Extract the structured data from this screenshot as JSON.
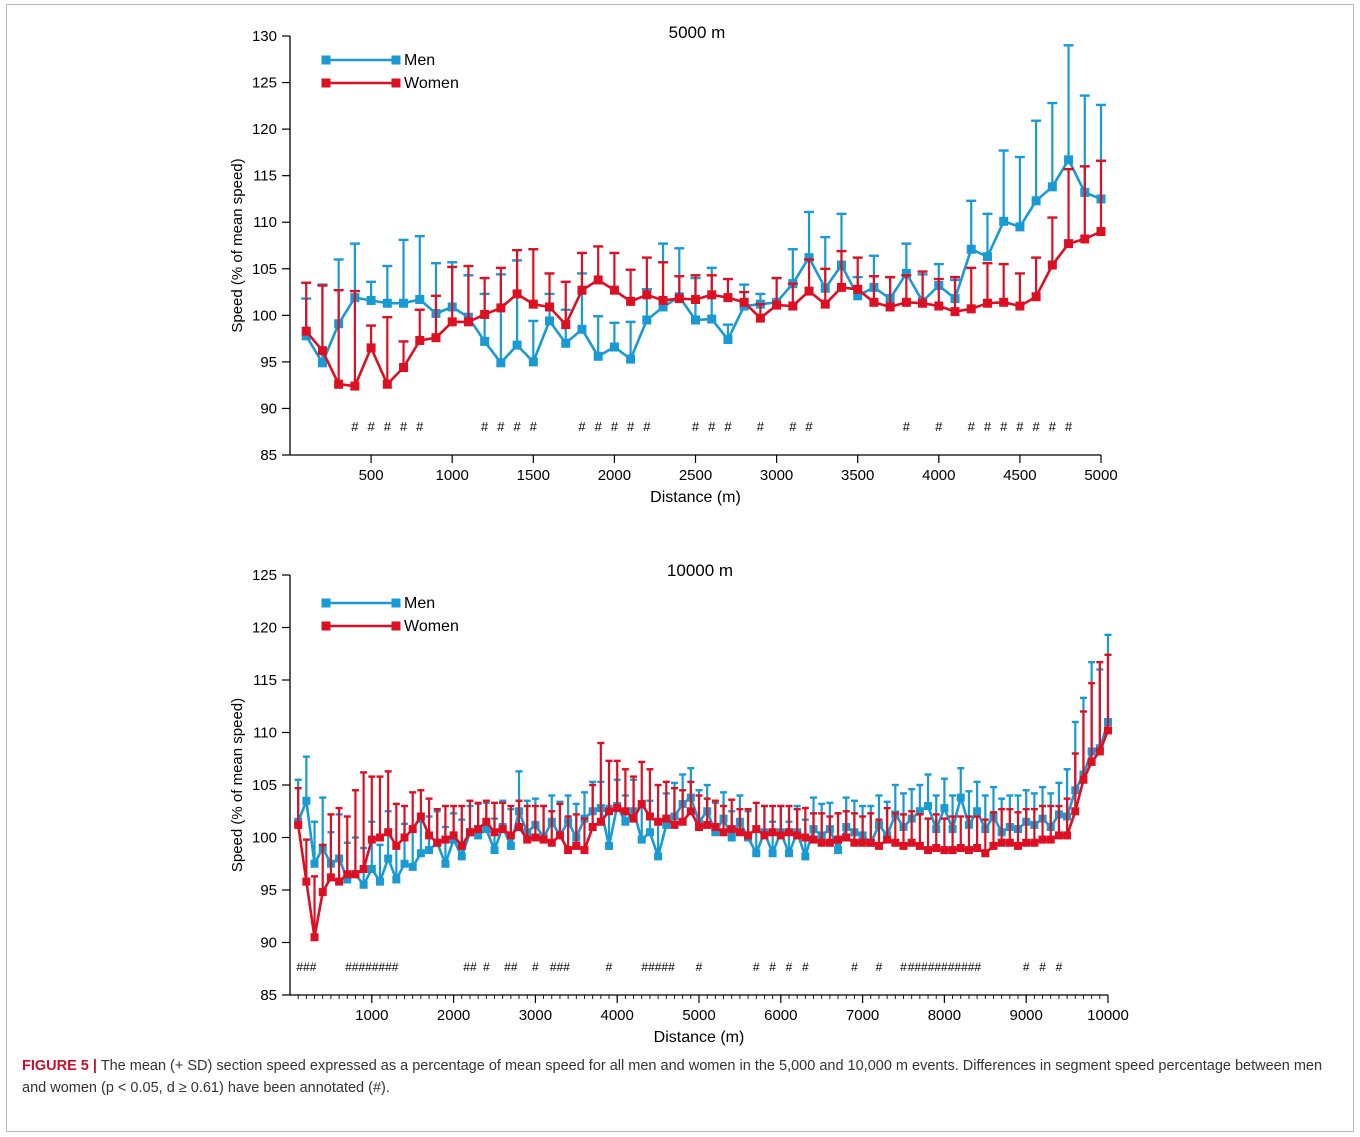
{
  "colors": {
    "men": "#199ad3",
    "women": "#dc0f23",
    "axis": "#000000"
  },
  "chart_data": [
    {
      "type": "line",
      "title": "5000 m",
      "xlabel": "Distance (m)",
      "ylabel": "Speed (% of mean speed)",
      "xlim": [
        0,
        5000
      ],
      "ylim": [
        85,
        130
      ],
      "xticks": [
        500,
        1000,
        1500,
        2000,
        2500,
        3000,
        3500,
        4000,
        4500,
        5000
      ],
      "yticks": [
        85,
        90,
        95,
        100,
        105,
        110,
        115,
        120,
        125,
        130
      ],
      "x": [
        100,
        200,
        300,
        400,
        500,
        600,
        700,
        800,
        900,
        1000,
        1100,
        1200,
        1300,
        1400,
        1500,
        1600,
        1700,
        1800,
        1900,
        2000,
        2100,
        2200,
        2300,
        2400,
        2500,
        2600,
        2700,
        2800,
        2900,
        3000,
        3100,
        3200,
        3300,
        3400,
        3500,
        3600,
        3700,
        3800,
        3900,
        4000,
        4100,
        4200,
        4300,
        4400,
        4500,
        4600,
        4700,
        4800,
        4900,
        5000
      ],
      "series": [
        {
          "name": "Men",
          "color": "#199ad3",
          "values": [
            97.8,
            94.9,
            99.1,
            101.9,
            101.6,
            101.3,
            101.3,
            101.7,
            100.2,
            100.9,
            99.8,
            97.2,
            94.9,
            96.8,
            95.0,
            99.4,
            97.0,
            98.5,
            95.6,
            96.6,
            95.3,
            99.5,
            100.9,
            102.0,
            99.5,
            99.6,
            97.4,
            101.0,
            101.2,
            101.4,
            103.4,
            106.2,
            102.9,
            105.4,
            102.1,
            103.0,
            101.8,
            104.5,
            101.5,
            103.2,
            101.8,
            107.1,
            106.3,
            110.1,
            109.5,
            112.3,
            113.8,
            116.7,
            113.2,
            112.5
          ],
          "sd": [
            4.0,
            8.4,
            6.9,
            5.8,
            2.0,
            4.0,
            6.8,
            6.8,
            5.4,
            4.8,
            4.5,
            5.1,
            9.5,
            9.1,
            4.4,
            2.9,
            3.6,
            6.0,
            4.3,
            2.6,
            4.0,
            3.3,
            6.8,
            5.2,
            4.5,
            5.5,
            1.6,
            2.3,
            1.1,
            2.6,
            3.7,
            4.9,
            5.5,
            5.5,
            2.0,
            3.4,
            2.3,
            3.2,
            2.9,
            2.3,
            2.0,
            5.2,
            4.6,
            7.6,
            7.5,
            8.6,
            9.0,
            12.3,
            10.4,
            10.1
          ]
        },
        {
          "name": "Women",
          "color": "#dc0f23",
          "values": [
            98.3,
            96.2,
            92.6,
            92.4,
            96.5,
            92.6,
            94.4,
            97.3,
            97.6,
            99.3,
            99.3,
            100.1,
            100.8,
            102.3,
            101.2,
            100.9,
            99.0,
            102.7,
            103.8,
            102.7,
            101.5,
            102.2,
            101.6,
            101.8,
            101.7,
            102.2,
            101.9,
            101.4,
            99.7,
            101.1,
            101.0,
            102.6,
            101.2,
            103.0,
            102.8,
            101.4,
            100.9,
            101.4,
            101.3,
            101.0,
            100.4,
            100.7,
            101.3,
            101.4,
            101.0,
            102.0,
            105.4,
            107.7,
            108.2,
            109.0
          ],
          "sd": [
            5.2,
            7.0,
            10.1,
            10.2,
            2.4,
            7.2,
            2.8,
            3.3,
            4.5,
            5.9,
            6.0,
            3.9,
            4.3,
            4.7,
            5.9,
            3.6,
            4.6,
            4.0,
            3.6,
            4.0,
            3.4,
            4.0,
            4.1,
            2.4,
            2.6,
            2.1,
            2.0,
            1.1,
            1.5,
            2.9,
            2.4,
            3.4,
            3.8,
            3.9,
            3.4,
            2.8,
            3.2,
            2.9,
            3.4,
            2.9,
            3.7,
            4.4,
            4.3,
            4.1,
            3.5,
            4.2,
            5.1,
            8.0,
            7.8,
            7.6
          ]
        }
      ],
      "sig_marks": [
        400,
        500,
        600,
        700,
        800,
        1200,
        1300,
        1400,
        1500,
        1800,
        1900,
        2000,
        2100,
        2200,
        2500,
        2600,
        2700,
        2900,
        3100,
        3200,
        3800,
        4000,
        4200,
        4300,
        4400,
        4500,
        4600,
        4700,
        4800
      ],
      "legend": {
        "placement": "top-left",
        "entries": [
          "Men",
          "Women"
        ]
      },
      "annotation_symbol": "#"
    },
    {
      "type": "line",
      "title": "10000 m",
      "xlabel": "Distance (m)",
      "ylabel": "Speed (% of mean speed)",
      "xlim": [
        0,
        10000
      ],
      "ylim": [
        85,
        125
      ],
      "xticks": [
        1000,
        2000,
        3000,
        4000,
        5000,
        6000,
        7000,
        8000,
        9000,
        10000
      ],
      "yticks": [
        85,
        90,
        95,
        100,
        105,
        110,
        115,
        120,
        125
      ],
      "x": [
        100,
        200,
        300,
        400,
        500,
        600,
        700,
        800,
        900,
        1000,
        1100,
        1200,
        1300,
        1400,
        1500,
        1600,
        1700,
        1800,
        1900,
        2000,
        2100,
        2200,
        2300,
        2400,
        2500,
        2600,
        2700,
        2800,
        2900,
        3000,
        3100,
        3200,
        3300,
        3400,
        3500,
        3600,
        3700,
        3800,
        3900,
        4000,
        4100,
        4200,
        4300,
        4400,
        4500,
        4600,
        4700,
        4800,
        4900,
        5000,
        5100,
        5200,
        5300,
        5400,
        5500,
        5600,
        5700,
        5800,
        5900,
        6000,
        6100,
        6200,
        6300,
        6400,
        6500,
        6600,
        6700,
        6800,
        6900,
        7000,
        7100,
        7200,
        7300,
        7400,
        7500,
        7600,
        7700,
        7800,
        7900,
        8000,
        8100,
        8200,
        8300,
        8400,
        8500,
        8600,
        8700,
        8800,
        8900,
        9000,
        9100,
        9200,
        9300,
        9400,
        9500,
        9600,
        9700,
        9800,
        9900,
        10000
      ],
      "series": [
        {
          "name": "Men",
          "color": "#199ad3",
          "values": [
            101.5,
            103.5,
            97.5,
            99.0,
            97.5,
            98.0,
            96.0,
            96.5,
            95.5,
            97.0,
            95.8,
            98.0,
            96.0,
            97.5,
            97.2,
            98.5,
            98.8,
            99.5,
            97.5,
            99.8,
            98.2,
            100.5,
            100.2,
            100.8,
            98.8,
            101.0,
            99.2,
            102.5,
            100.5,
            101.2,
            100.0,
            101.5,
            100.2,
            101.5,
            100.0,
            101.8,
            102.5,
            102.8,
            99.2,
            103.0,
            101.5,
            102.5,
            99.8,
            100.5,
            98.2,
            101.2,
            102.0,
            103.2,
            103.8,
            101.5,
            102.5,
            100.5,
            101.8,
            100.0,
            101.5,
            100.0,
            98.5,
            100.5,
            98.5,
            100.5,
            98.5,
            100.5,
            98.2,
            100.8,
            100.2,
            100.8,
            98.8,
            101.0,
            100.5,
            100.2,
            99.5,
            101.2,
            100.2,
            102.2,
            101.0,
            101.8,
            102.5,
            103.0,
            100.8,
            102.8,
            100.8,
            103.8,
            101.2,
            102.5,
            100.8,
            102.0,
            100.5,
            101.0,
            100.8,
            101.5,
            101.2,
            101.8,
            101.0,
            102.2,
            102.0,
            104.5,
            106.0,
            108.2,
            108.5,
            111.0
          ],
          "sd": [
            4.0,
            4.2,
            4.0,
            4.8,
            3.0,
            4.2,
            3.5,
            3.5,
            3.5,
            4.5,
            3.5,
            4.5,
            3.0,
            3.8,
            3.8,
            3.0,
            3.2,
            3.0,
            3.5,
            2.5,
            3.5,
            2.5,
            3.0,
            2.5,
            3.0,
            2.5,
            3.5,
            3.8,
            3.0,
            2.5,
            3.0,
            2.5,
            3.2,
            2.5,
            3.2,
            2.5,
            2.8,
            2.5,
            3.8,
            2.5,
            2.5,
            3.0,
            3.2,
            3.0,
            3.5,
            3.0,
            3.2,
            2.8,
            2.8,
            3.0,
            2.5,
            2.8,
            2.5,
            2.5,
            2.5,
            2.5,
            2.5,
            2.5,
            3.0,
            2.5,
            3.0,
            2.5,
            3.5,
            3.0,
            3.0,
            2.5,
            3.5,
            2.8,
            3.0,
            2.8,
            3.5,
            2.8,
            3.2,
            2.8,
            3.2,
            2.8,
            2.5,
            3.0,
            3.2,
            2.8,
            3.2,
            2.8,
            3.2,
            2.8,
            3.2,
            2.8,
            3.2,
            3.0,
            3.2,
            3.0,
            3.0,
            3.0,
            3.2,
            3.0,
            4.5,
            6.5,
            7.3,
            8.5,
            7.5,
            8.3
          ]
        },
        {
          "name": "Women",
          "color": "#dc0f23",
          "values": [
            101.2,
            95.8,
            90.5,
            94.8,
            96.2,
            95.8,
            96.5,
            96.5,
            97.0,
            99.8,
            100.0,
            100.5,
            99.2,
            100.0,
            100.8,
            102.0,
            100.2,
            99.5,
            99.8,
            100.2,
            99.2,
            100.5,
            100.8,
            101.5,
            100.5,
            100.8,
            100.2,
            101.0,
            99.8,
            100.0,
            99.8,
            99.5,
            100.2,
            98.8,
            99.2,
            98.8,
            101.0,
            101.5,
            102.5,
            102.8,
            102.5,
            101.8,
            103.2,
            102.0,
            101.5,
            101.8,
            101.2,
            101.5,
            102.5,
            101.0,
            101.2,
            101.0,
            100.5,
            100.8,
            100.5,
            100.2,
            100.8,
            100.2,
            100.5,
            100.2,
            100.5,
            100.2,
            100.0,
            99.8,
            99.5,
            99.5,
            99.8,
            100.0,
            99.5,
            99.5,
            99.5,
            99.2,
            99.8,
            99.5,
            99.2,
            99.5,
            99.2,
            98.8,
            99.0,
            98.8,
            98.8,
            99.0,
            98.8,
            99.0,
            98.5,
            99.2,
            99.5,
            99.5,
            99.2,
            99.5,
            99.5,
            99.8,
            99.8,
            100.2,
            100.2,
            102.5,
            105.5,
            107.2,
            108.2,
            110.2
          ],
          "sd": [
            3.5,
            4.0,
            5.8,
            4.5,
            6.0,
            7.0,
            5.5,
            8.0,
            9.2,
            6.0,
            5.8,
            5.8,
            4.0,
            3.0,
            3.5,
            2.5,
            3.5,
            3.2,
            3.2,
            2.8,
            3.8,
            3.0,
            2.5,
            2.0,
            2.8,
            2.5,
            2.8,
            2.5,
            3.2,
            3.0,
            3.2,
            3.0,
            3.0,
            3.2,
            3.0,
            3.0,
            4.0,
            7.5,
            4.8,
            4.5,
            4.0,
            4.0,
            4.0,
            4.5,
            3.5,
            3.5,
            3.5,
            3.0,
            2.8,
            3.0,
            2.5,
            2.5,
            2.5,
            2.8,
            2.2,
            2.5,
            2.5,
            2.8,
            2.5,
            2.8,
            2.5,
            2.5,
            2.8,
            2.5,
            2.8,
            2.5,
            2.5,
            2.5,
            2.8,
            2.5,
            2.8,
            2.5,
            3.0,
            2.8,
            3.0,
            3.0,
            3.0,
            3.0,
            3.2,
            3.0,
            3.2,
            3.0,
            3.2,
            3.0,
            3.2,
            3.2,
            3.2,
            3.2,
            3.2,
            3.2,
            3.2,
            3.2,
            3.2,
            2.8,
            3.5,
            5.5,
            6.5,
            7.5,
            8.5,
            7.2
          ]
        }
      ],
      "sig_labels": [
        {
          "x": 200,
          "text": "###"
        },
        {
          "x": 1000,
          "text": "########"
        },
        {
          "x": 2200,
          "text": "##"
        },
        {
          "x": 2400,
          "text": "#"
        },
        {
          "x": 2700,
          "text": "##"
        },
        {
          "x": 3000,
          "text": "#"
        },
        {
          "x": 3300,
          "text": "###"
        },
        {
          "x": 3900,
          "text": "#"
        },
        {
          "x": 4500,
          "text": "#####"
        },
        {
          "x": 5000,
          "text": "#"
        },
        {
          "x": 5700,
          "text": "#"
        },
        {
          "x": 5900,
          "text": "#"
        },
        {
          "x": 6100,
          "text": "#"
        },
        {
          "x": 6300,
          "text": "#"
        },
        {
          "x": 6900,
          "text": "#"
        },
        {
          "x": 7200,
          "text": "#"
        },
        {
          "x": 7500,
          "text": "#"
        },
        {
          "x": 8000,
          "text": "###########"
        },
        {
          "x": 9000,
          "text": "#"
        },
        {
          "x": 9200,
          "text": "#"
        },
        {
          "x": 9400,
          "text": "#"
        }
      ],
      "legend": {
        "placement": "top-left",
        "entries": [
          "Men",
          "Women"
        ]
      }
    }
  ],
  "caption": {
    "label": "FIGURE 5 |",
    "text": " The mean (+ SD) section speed expressed as a percentage of mean speed for all men and women in the 5,000 and 10,000 m events. Differences in segment speed percentage between men and women (p < 0.05, d ≥ 0.61) have been annotated (#)."
  }
}
